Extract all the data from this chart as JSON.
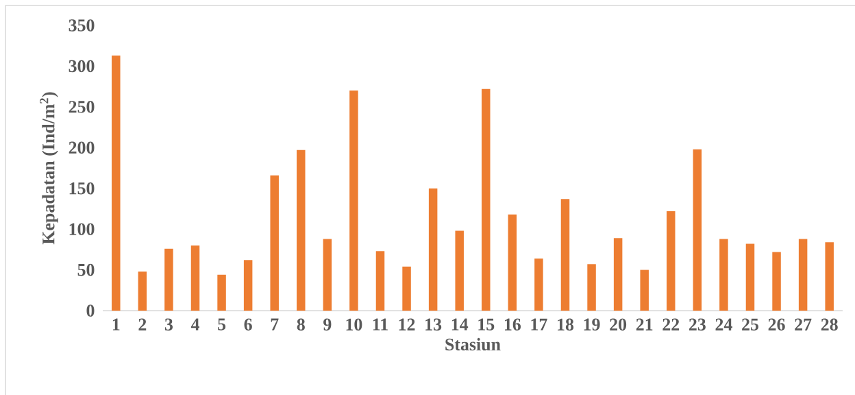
{
  "chart_data": {
    "type": "bar",
    "xlabel": "Stasiun",
    "ylabel": "Kepadatan (Ind/m$^{2}$)",
    "categories": [
      "1",
      "2",
      "3",
      "4",
      "5",
      "6",
      "7",
      "8",
      "9",
      "10",
      "11",
      "12",
      "13",
      "14",
      "15",
      "16",
      "17",
      "18",
      "19",
      "20",
      "21",
      "22",
      "23",
      "24",
      "25",
      "26",
      "27",
      "28"
    ],
    "values": [
      313,
      48,
      76,
      80,
      44,
      62,
      166,
      197,
      88,
      270,
      73,
      54,
      150,
      98,
      272,
      118,
      64,
      137,
      57,
      89,
      50,
      122,
      198,
      88,
      82,
      72,
      88,
      84
    ],
    "color": "#ed7d31",
    "ylim": [
      0,
      350
    ],
    "yticks": [
      0,
      50,
      100,
      150,
      200,
      250,
      300,
      350
    ]
  }
}
